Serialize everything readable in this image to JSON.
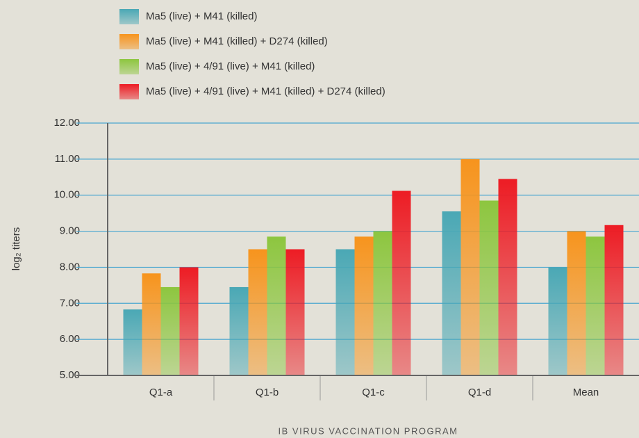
{
  "chart_data": {
    "type": "bar",
    "y_label": "log₂ titers",
    "x_label": "IB VIRUS VACCINATION PROGRAM",
    "categories": [
      "Q1-a",
      "Q1-b",
      "Q1-c",
      "Q1-d",
      "Mean"
    ],
    "series": [
      {
        "name": "Ma5 (live) + M41 (killed)",
        "color": "#4aa8b5",
        "values": [
          6.83,
          7.45,
          8.5,
          9.55,
          8.0
        ]
      },
      {
        "name": "Ma5 (live) + M41 (killed) + D274 (killed)",
        "color": "#f7941d",
        "values": [
          7.83,
          8.5,
          8.85,
          11.0,
          9.0
        ]
      },
      {
        "name": "Ma5 (live) + 4/91 (live) + M41 (killed)",
        "color": "#8dc63f",
        "values": [
          7.45,
          8.85,
          9.0,
          9.85,
          8.85
        ]
      },
      {
        "name": "Ma5 (live) + 4/91 (live) + M41 (killed) + D274 (killed)",
        "color": "#ed1c24",
        "values": [
          8.0,
          8.5,
          10.12,
          10.45,
          9.17
        ]
      }
    ],
    "ylim": [
      5,
      12
    ],
    "yticks": [
      {
        "value": 5,
        "label": "5.00"
      },
      {
        "value": 6,
        "label": "6.00"
      },
      {
        "value": 7,
        "label": "7.00"
      },
      {
        "value": 8,
        "label": "8.00"
      },
      {
        "value": 9,
        "label": "9.00"
      },
      {
        "value": 10,
        "label": "10.00"
      },
      {
        "value": 11,
        "label": "11.00"
      },
      {
        "value": 12,
        "label": "12.00"
      }
    ],
    "grid": true,
    "legend": "top"
  }
}
